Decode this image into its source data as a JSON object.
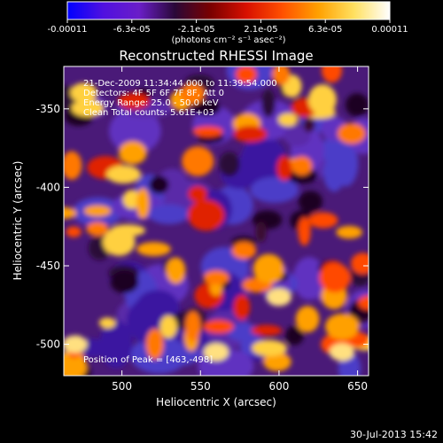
{
  "colorbar": {
    "ticks": [
      "-0.00011",
      "-6.3e-05",
      "-2.1e-05",
      "2.1e-05",
      "6.3e-05",
      "0.00011"
    ],
    "units": "(photons cm⁻² s⁻¹ asec⁻²)",
    "stops": [
      "#0000ff",
      "#5010e0",
      "#6a1ec8",
      "#2a0838",
      "#7a0000",
      "#d81000",
      "#ff5000",
      "#ffa000",
      "#ffe060",
      "#ffffff"
    ]
  },
  "chart_data": {
    "type": "heatmap",
    "title": "Reconstructed RHESSI Image",
    "xlabel": "Heliocentric X (arcsec)",
    "ylabel": "Heliocentric Y (arcsec)",
    "xlim": [
      463,
      657
    ],
    "ylim": [
      -520,
      -323
    ],
    "xticks": [
      500,
      550,
      600,
      650
    ],
    "yticks": [
      -350,
      -400,
      -450,
      -500
    ],
    "annotations": [
      "21-Dec-2009 11:34:44.000 to 11:39:54.000",
      "Detectors: 4F 5F 6F 7F 8F, Att 0",
      "Energy Range: 25.0 - 50.0 keV",
      "Clean    Total counts: 5.61E+03"
    ],
    "peak_label": "Position of Peak = [463,-498]",
    "peak": [
      463,
      -498
    ]
  },
  "footer": {
    "date": "30-Jul-2013 15:42"
  }
}
